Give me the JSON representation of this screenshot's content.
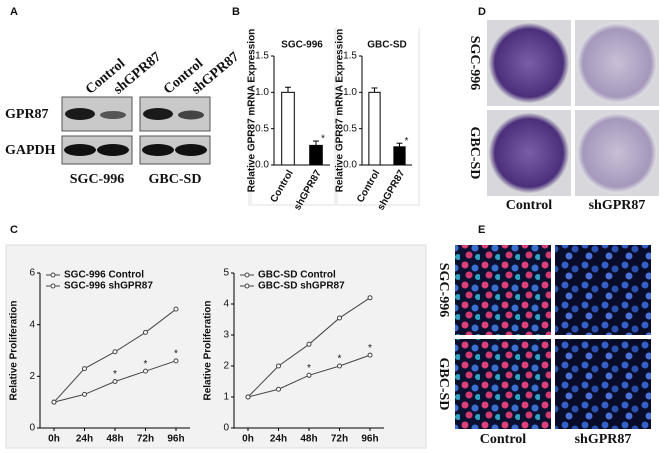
{
  "panels": {
    "a": "A",
    "b": "B",
    "c": "C",
    "d": "D",
    "e": "E"
  },
  "blot": {
    "lanes": [
      "Control",
      "shGPR87",
      "Control",
      "shGPR87"
    ],
    "proteins": [
      "GPR87",
      "GAPDH"
    ],
    "cell_lines": [
      "SGC-996",
      "GBC-SD"
    ]
  },
  "colony": {
    "rows": [
      "SGC-996",
      "GBC-SD"
    ],
    "columns": [
      "Control",
      "shGPR87"
    ]
  },
  "staining": {
    "rows": [
      "SGC-996",
      "GBC-SD"
    ],
    "columns": [
      "Control",
      "shGPR87"
    ]
  },
  "chart_data": [
    {
      "type": "bar",
      "title": "SGC-996",
      "ylabel": "Relative GPR87 mRNA Expression",
      "categories": [
        "Control",
        "shGPR87"
      ],
      "values": [
        1.0,
        0.27
      ],
      "errors": [
        0.07,
        0.06
      ],
      "colors": [
        "#ffffff",
        "#000000"
      ],
      "significance": [
        null,
        "*"
      ],
      "ylim": [
        0,
        1.5
      ],
      "yticks": [
        {
          "value": 0,
          "label": "0.0"
        },
        {
          "value": 0.5,
          "label": "0.5"
        },
        {
          "value": 1,
          "label": "1.0"
        },
        {
          "value": 1.5,
          "label": "1.5"
        }
      ]
    },
    {
      "type": "bar",
      "title": "GBC-SD",
      "ylabel": "Relative GPR87 mRNA Expression",
      "categories": [
        "Control",
        "shGPR87"
      ],
      "values": [
        1.0,
        0.25
      ],
      "errors": [
        0.06,
        0.05
      ],
      "colors": [
        "#ffffff",
        "#000000"
      ],
      "significance": [
        null,
        "*"
      ],
      "ylim": [
        0,
        1.5
      ],
      "yticks": [
        {
          "value": 0,
          "label": "0.0"
        },
        {
          "value": 0.5,
          "label": "0.5"
        },
        {
          "value": 1,
          "label": "1.0"
        },
        {
          "value": 1.5,
          "label": "1.5"
        }
      ]
    },
    {
      "type": "line",
      "ylabel": "Relative Proliferation",
      "categories": [
        "0h",
        "24h",
        "48h",
        "72h",
        "96h"
      ],
      "legend": "upper left",
      "ylim": [
        0,
        6
      ],
      "yticks": [
        0,
        2,
        4,
        6
      ],
      "series": [
        {
          "name": "SGC-996 Control",
          "color": "#444444",
          "values": [
            1.0,
            2.3,
            2.95,
            3.7,
            4.6
          ]
        },
        {
          "name": "SGC-996 shGPR87",
          "color": "#444444",
          "values": [
            1.0,
            1.3,
            1.8,
            2.2,
            2.6
          ],
          "significance": [
            null,
            null,
            "*",
            "*",
            "*"
          ]
        }
      ]
    },
    {
      "type": "line",
      "ylabel": "Relative Proliferation",
      "categories": [
        "0h",
        "24h",
        "48h",
        "72h",
        "96h"
      ],
      "legend": "upper left",
      "ylim": [
        0,
        5
      ],
      "yticks": [
        0,
        1,
        2,
        3,
        4,
        5
      ],
      "series": [
        {
          "name": "GBC-SD Control",
          "color": "#444444",
          "values": [
            1.0,
            2.0,
            2.7,
            3.55,
            4.2
          ]
        },
        {
          "name": "GBC-SD shGPR87",
          "color": "#444444",
          "values": [
            1.0,
            1.25,
            1.7,
            2.0,
            2.35
          ],
          "significance": [
            null,
            null,
            "*",
            "*",
            "*"
          ]
        }
      ]
    }
  ]
}
